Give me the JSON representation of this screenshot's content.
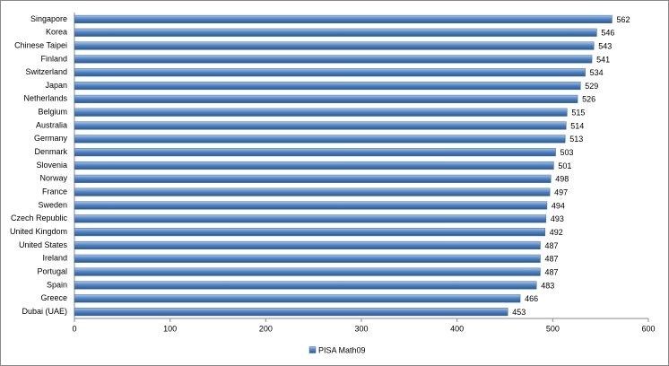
{
  "chart_data": {
    "type": "bar",
    "orientation": "horizontal",
    "categories": [
      "Singapore",
      "Korea",
      "Chinese Taipei",
      "Finland",
      "Switzerland",
      "Japan",
      "Netherlands",
      "Belgium",
      "Australia",
      "Germany",
      "Denmark",
      "Slovenia",
      "Norway",
      "France",
      "Sweden",
      "Czech Republic",
      "United Kingdom",
      "United States",
      "Ireland",
      "Portugal",
      "Spain",
      "Greece",
      "Dubai (UAE)"
    ],
    "series": [
      {
        "name": "PISA Math09",
        "color": "#4f81bd",
        "values": [
          562,
          546,
          543,
          541,
          534,
          529,
          526,
          515,
          514,
          513,
          503,
          501,
          498,
          497,
          494,
          493,
          492,
          487,
          487,
          487,
          483,
          466,
          453
        ]
      }
    ],
    "xlim": [
      0,
      600
    ],
    "xticks": [
      0,
      100,
      200,
      300,
      400,
      500,
      600
    ],
    "grid": false,
    "legend": "bottom"
  }
}
